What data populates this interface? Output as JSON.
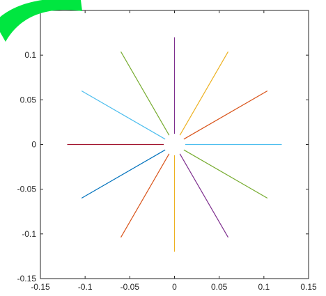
{
  "chart_data": {
    "type": "line",
    "title": "",
    "xlabel": "",
    "ylabel": "",
    "xlim": [
      -0.15,
      0.15
    ],
    "ylim": [
      -0.15,
      0.15
    ],
    "grid": false,
    "x_ticks": [
      "-0.15",
      "-0.1",
      "-0.05",
      "0",
      "0.05",
      "0.1",
      "0.15"
    ],
    "y_ticks": [
      "0.15",
      "0.1",
      "0.05",
      "0",
      "-0.05",
      "-0.1",
      "-0.15"
    ],
    "x_tick_values": [
      -0.15,
      -0.1,
      -0.05,
      0,
      0.05,
      0.1,
      0.15
    ],
    "y_tick_values": [
      0.15,
      0.1,
      0.05,
      0,
      -0.05,
      -0.1,
      -0.15
    ],
    "series": [
      {
        "x": [
          0.012,
          0.12
        ],
        "y": [
          0,
          0
        ],
        "color": "#4DBEEE"
      },
      {
        "x": [
          0.0104,
          0.1039
        ],
        "y": [
          0.006,
          0.06
        ],
        "color": "#D95319"
      },
      {
        "x": [
          0.006,
          0.06
        ],
        "y": [
          0.0104,
          0.1039
        ],
        "color": "#EDB120"
      },
      {
        "x": [
          0,
          0
        ],
        "y": [
          0.012,
          0.12
        ],
        "color": "#7E2F8E"
      },
      {
        "x": [
          -0.006,
          -0.06
        ],
        "y": [
          0.0104,
          0.1039
        ],
        "color": "#77AC30"
      },
      {
        "x": [
          -0.0104,
          -0.1039
        ],
        "y": [
          0.006,
          0.06
        ],
        "color": "#4DBEEE"
      },
      {
        "x": [
          -0.012,
          -0.12
        ],
        "y": [
          0,
          0
        ],
        "color": "#A2142F"
      },
      {
        "x": [
          -0.0104,
          -0.1039
        ],
        "y": [
          -0.006,
          -0.06
        ],
        "color": "#0072BD"
      },
      {
        "x": [
          -0.006,
          -0.06
        ],
        "y": [
          -0.0104,
          -0.1039
        ],
        "color": "#D95319"
      },
      {
        "x": [
          0,
          0
        ],
        "y": [
          -0.012,
          -0.12
        ],
        "color": "#EDB120"
      },
      {
        "x": [
          0.006,
          0.06
        ],
        "y": [
          -0.0104,
          -0.1039
        ],
        "color": "#7E2F8E"
      },
      {
        "x": [
          0.0104,
          0.1039
        ],
        "y": [
          -0.006,
          -0.06
        ],
        "color": "#77AC30"
      }
    ]
  }
}
